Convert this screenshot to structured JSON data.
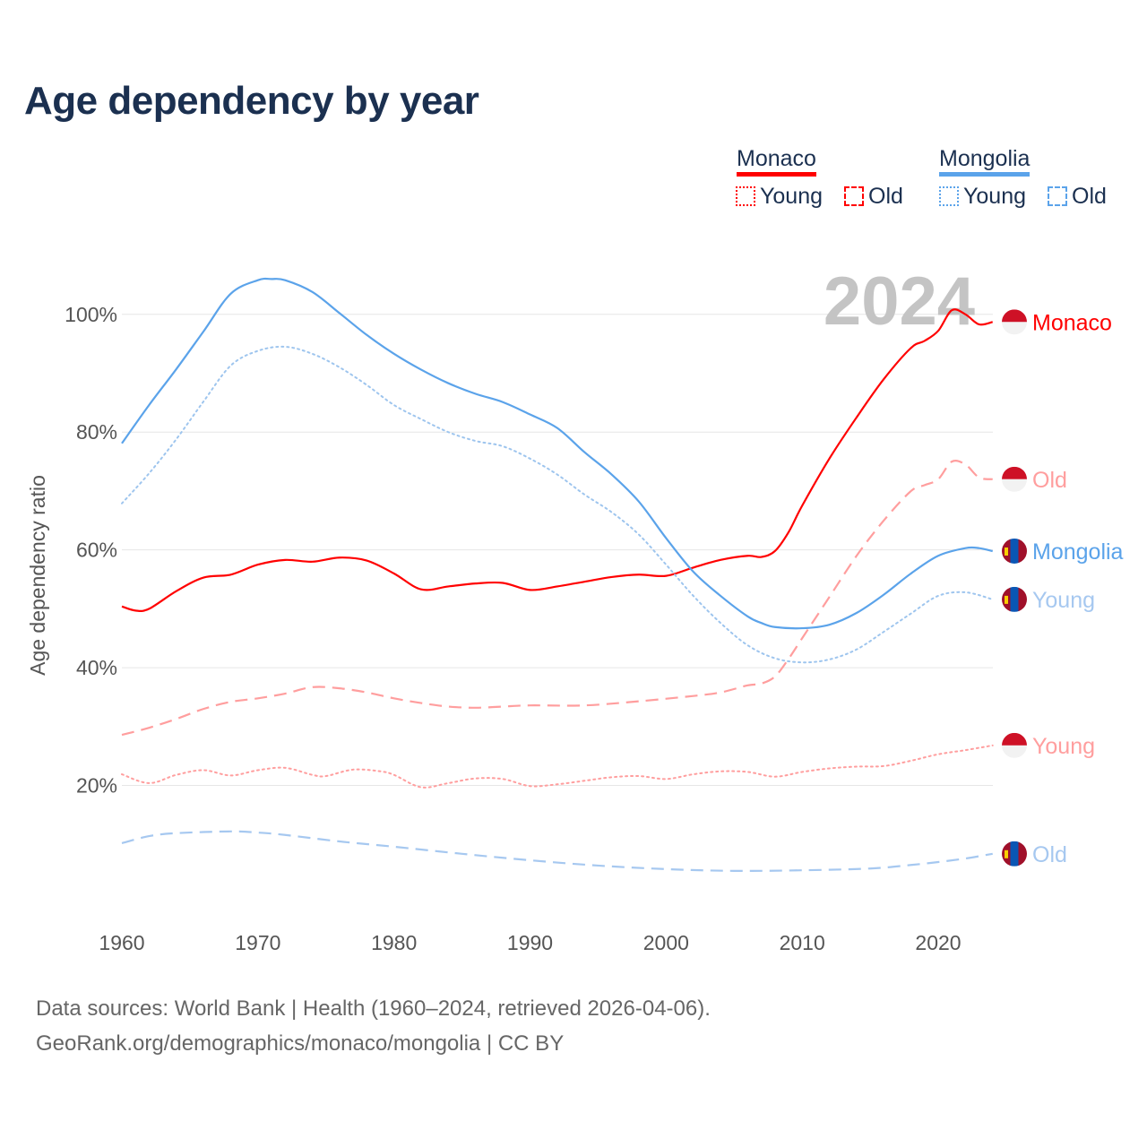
{
  "title": "Age dependency by year",
  "legend": {
    "countries": [
      {
        "name": "Monaco",
        "color": "#ff0000",
        "young_label": "Young",
        "old_label": "Old"
      },
      {
        "name": "Mongolia",
        "color": "#5ba3ea",
        "young_label": "Young",
        "old_label": "Old"
      }
    ]
  },
  "source": {
    "line1": "Data sources: World Bank | Health (1960–2024, retrieved 2026-04-06).",
    "line2": "GeoRank.org/demographics/monaco/mongolia | CC BY"
  },
  "chart_data": {
    "type": "line",
    "title": "Age dependency by year",
    "ylabel": "Age dependency ratio",
    "xlabel": "",
    "year_watermark": "2024",
    "xlim": [
      1960,
      2024
    ],
    "ylim": [
      0,
      110
    ],
    "x_ticks": [
      "1960",
      "1970",
      "1980",
      "1990",
      "2000",
      "2010",
      "2020"
    ],
    "y_ticks": [
      {
        "v": 20,
        "label": "20%"
      },
      {
        "v": 40,
        "label": "40%"
      },
      {
        "v": 60,
        "label": "60%"
      },
      {
        "v": 80,
        "label": "80%"
      },
      {
        "v": 100,
        "label": "100%"
      }
    ],
    "grid": true,
    "series": [
      {
        "name": "Monaco",
        "country": "Monaco",
        "kind": "total",
        "end_label": "Monaco",
        "color": "#ff0000",
        "style": "solid",
        "x": [
          1960,
          1961,
          1962,
          1964,
          1966,
          1968,
          1970,
          1972,
          1974,
          1976,
          1978,
          1980,
          1982,
          1984,
          1986,
          1988,
          1990,
          1992,
          1994,
          1996,
          1998,
          2000,
          2002,
          2004,
          2006,
          2007,
          2008,
          2009,
          2010,
          2012,
          2014,
          2016,
          2018,
          2019,
          2020,
          2021,
          2022,
          2023,
          2024
        ],
        "y": [
          50.4,
          49.7,
          50,
          53,
          55.3,
          55.8,
          57.5,
          58.3,
          58,
          58.7,
          58.2,
          56,
          53.3,
          53.8,
          54.3,
          54.4,
          53.2,
          53.8,
          54.6,
          55.4,
          55.8,
          55.6,
          57,
          58.3,
          59,
          58.8,
          59.8,
          63,
          67.5,
          75.5,
          82.5,
          89,
          94.3,
          95.5,
          97.2,
          100.7,
          100,
          98.3,
          98.7
        ]
      },
      {
        "name": "Monaco Old",
        "country": "Monaco",
        "kind": "old",
        "end_label": "Old",
        "color": "#ff9e9e",
        "style": "dashed",
        "x": [
          1960,
          1962,
          1964,
          1966,
          1968,
          1970,
          1972,
          1974,
          1976,
          1978,
          1980,
          1982,
          1984,
          1986,
          1988,
          1990,
          1994,
          1998,
          2002,
          2004,
          2006,
          2007,
          2008,
          2009,
          2010,
          2012,
          2014,
          2016,
          2018,
          2019,
          2020,
          2021,
          2022,
          2023,
          2024
        ],
        "y": [
          28.6,
          29.8,
          31.3,
          33,
          34.2,
          34.8,
          35.6,
          36.7,
          36.5,
          35.8,
          34.8,
          34,
          33.4,
          33.2,
          33.4,
          33.6,
          33.6,
          34.3,
          35.2,
          35.8,
          37,
          37.3,
          38.5,
          41.5,
          45,
          52,
          59,
          65,
          70,
          71,
          72,
          75,
          74.5,
          72.3,
          72
        ]
      },
      {
        "name": "Monaco Young",
        "country": "Monaco",
        "kind": "young",
        "end_label": "Young",
        "color": "#ff9e9e",
        "style": "dotted",
        "x": [
          1960,
          1962,
          1964,
          1966,
          1968,
          1970,
          1972,
          1974,
          1975,
          1977,
          1979,
          1980,
          1982,
          1984,
          1986,
          1988,
          1990,
          1992,
          1994,
          1996,
          1998,
          2000,
          2002,
          2004,
          2006,
          2008,
          2010,
          2012,
          2014,
          2016,
          2018,
          2020,
          2022,
          2024
        ],
        "y": [
          21.9,
          20.4,
          21.8,
          22.6,
          21.7,
          22.6,
          23,
          21.8,
          21.6,
          22.7,
          22.4,
          21.8,
          19.7,
          20.4,
          21.2,
          21.1,
          19.9,
          20.2,
          20.8,
          21.4,
          21.6,
          21.1,
          21.9,
          22.4,
          22.3,
          21.5,
          22.3,
          22.9,
          23.2,
          23.3,
          24.2,
          25.3,
          26,
          26.8
        ]
      },
      {
        "name": "Mongolia",
        "country": "Mongolia",
        "kind": "total",
        "end_label": "Mongolia",
        "color": "#5ba3ea",
        "style": "solid",
        "x": [
          1960,
          1962,
          1964,
          1966,
          1968,
          1970,
          1971,
          1972,
          1974,
          1976,
          1978,
          1980,
          1982,
          1984,
          1986,
          1988,
          1990,
          1992,
          1994,
          1996,
          1998,
          2000,
          2002,
          2004,
          2006,
          2007,
          2008,
          2010,
          2012,
          2014,
          2016,
          2018,
          2020,
          2022,
          2023,
          2024
        ],
        "y": [
          78.1,
          84.6,
          90.7,
          97.1,
          103.5,
          105.8,
          106,
          105.8,
          103.8,
          100.2,
          96.5,
          93.3,
          90.6,
          88.3,
          86.5,
          85.1,
          83,
          80.7,
          76.6,
          72.8,
          68.2,
          62,
          56.3,
          52.2,
          48.7,
          47.6,
          46.9,
          46.7,
          47.3,
          49.3,
          52.4,
          56,
          59,
          60.3,
          60.3,
          59.8
        ]
      },
      {
        "name": "Mongolia Young",
        "country": "Mongolia",
        "kind": "young",
        "end_label": "Young",
        "color": "#9ec5ee",
        "style": "dotted",
        "x": [
          1960,
          1962,
          1964,
          1966,
          1968,
          1970,
          1972,
          1974,
          1976,
          1978,
          1980,
          1982,
          1984,
          1986,
          1988,
          1990,
          1992,
          1994,
          1996,
          1998,
          2000,
          2002,
          2004,
          2006,
          2008,
          2010,
          2012,
          2014,
          2016,
          2018,
          2020,
          2022,
          2024
        ],
        "y": [
          67.9,
          73,
          78.8,
          85.2,
          91.3,
          93.8,
          94.5,
          93.3,
          91,
          88,
          84.6,
          82.2,
          80,
          78.5,
          77.6,
          75.5,
          72.8,
          69.4,
          66.4,
          62.6,
          57.5,
          52.2,
          47.6,
          43.8,
          41.6,
          40.9,
          41.4,
          43.1,
          46.1,
          49.2,
          52.2,
          52.8,
          51.6
        ]
      },
      {
        "name": "Mongolia Old",
        "country": "Mongolia",
        "kind": "old",
        "end_label": "Old",
        "color": "#a6c8f0",
        "style": "dashed",
        "x": [
          1960,
          1962,
          1964,
          1968,
          1970,
          1972,
          1976,
          1980,
          1985,
          1990,
          1995,
          2000,
          2005,
          2010,
          2015,
          2018,
          2020,
          2022,
          2024
        ],
        "y": [
          10.2,
          11.4,
          11.9,
          12.2,
          12,
          11.6,
          10.5,
          9.6,
          8.4,
          7.3,
          6.4,
          5.8,
          5.5,
          5.6,
          5.9,
          6.5,
          7,
          7.6,
          8.4
        ]
      }
    ]
  }
}
